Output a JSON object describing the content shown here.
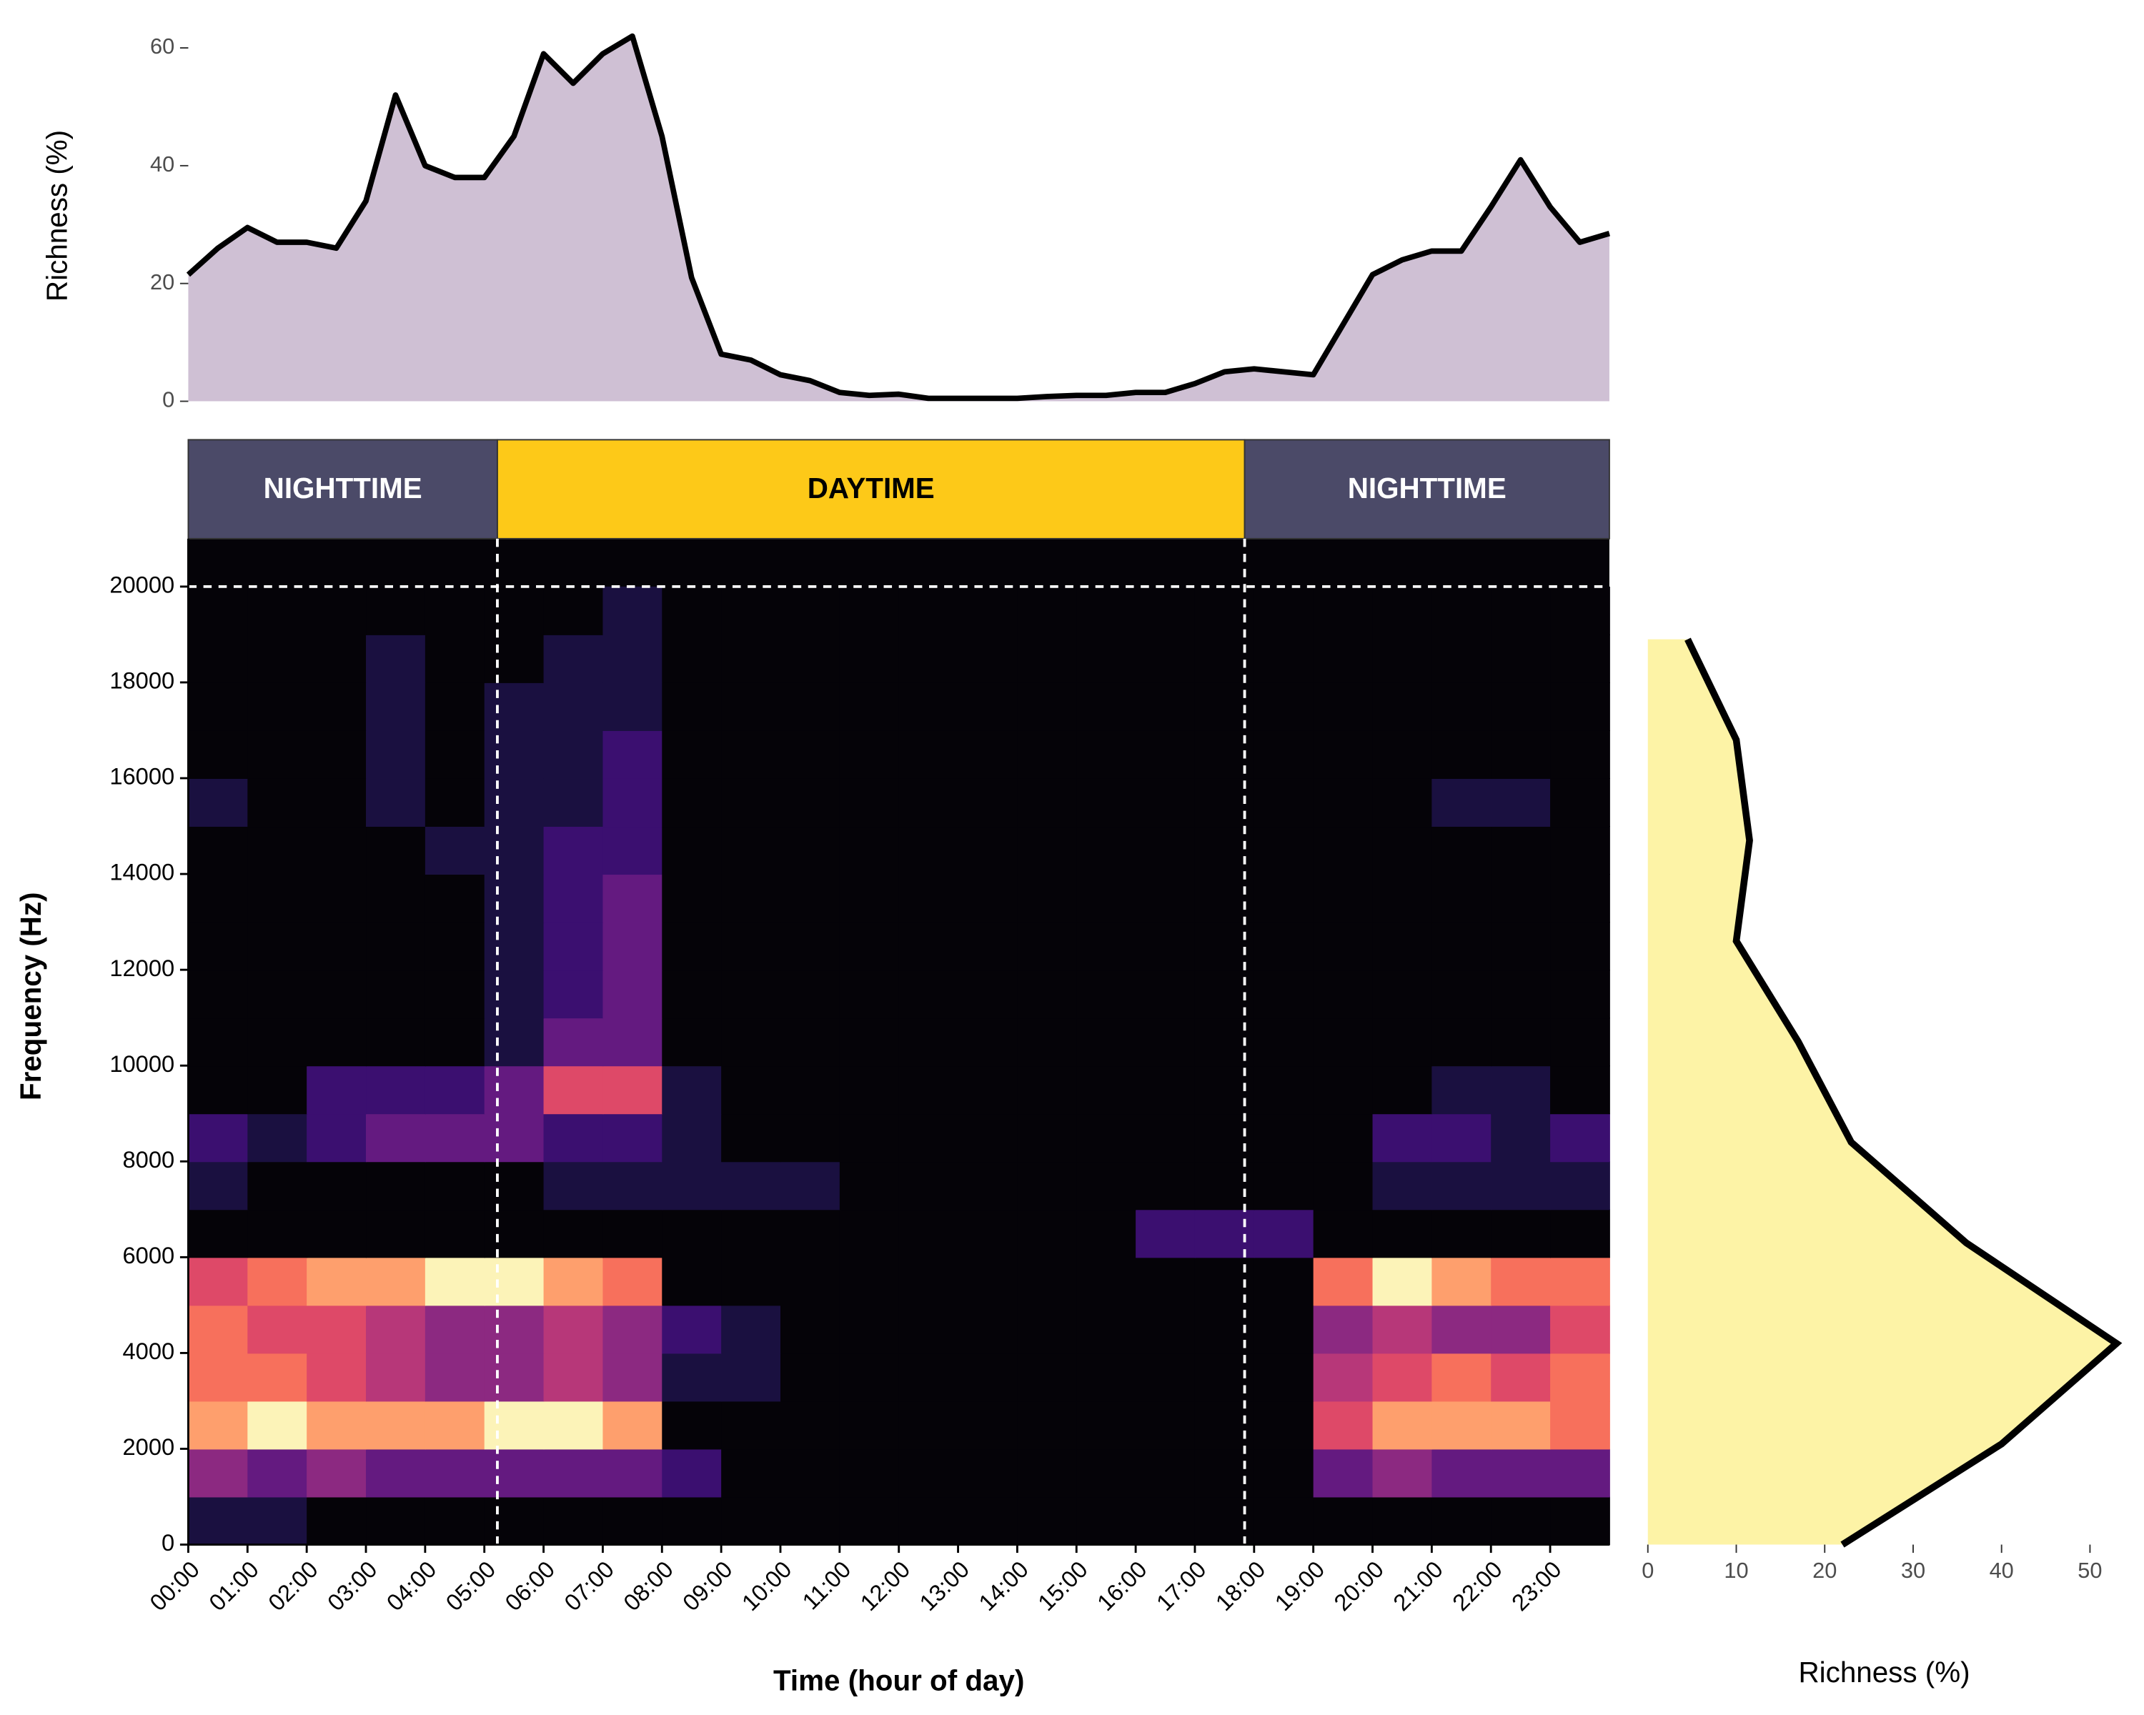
{
  "chart_data": [
    {
      "type": "area",
      "ylabel": "Richness (%)",
      "x": [
        0,
        0.5,
        1,
        1.5,
        2,
        2.5,
        3,
        3.5,
        4,
        4.5,
        5,
        5.5,
        6,
        6.5,
        7,
        7.5,
        8,
        8.5,
        9,
        9.5,
        10,
        10.5,
        11,
        11.5,
        12,
        12.5,
        13,
        13.5,
        14,
        14.5,
        15,
        15.5,
        16,
        16.5,
        17,
        17.5,
        18,
        18.5,
        19,
        19.5,
        20,
        20.5,
        21,
        21.5,
        22,
        22.5,
        23,
        23.5,
        24
      ],
      "values": [
        21.5,
        26,
        29.5,
        27,
        27,
        26,
        34,
        52,
        40,
        38,
        38,
        45,
        59,
        54,
        59,
        62,
        45,
        21,
        8,
        7,
        4.5,
        3.5,
        1.5,
        1,
        1.2,
        0.5,
        0.5,
        0.5,
        0.5,
        0.8,
        1,
        1,
        1.5,
        1.5,
        3,
        5,
        5.5,
        5,
        4.5,
        13,
        21.5,
        24,
        25.5,
        25.5,
        33,
        41,
        33,
        27,
        28.5
      ],
      "color": "#000000",
      "fill": "#cfc0d4",
      "xlim": [
        0,
        24
      ],
      "ylim": [
        0,
        63
      ],
      "yticks": [
        0,
        20,
        40,
        60
      ]
    },
    {
      "type": "heatmap",
      "xlabel": "Time (hour of day)",
      "ylabel": "Frequency (Hz)",
      "x": [
        0,
        1,
        2,
        3,
        4,
        5,
        6,
        7,
        8,
        9,
        10,
        11,
        12,
        13,
        14,
        15,
        16,
        17,
        18,
        19,
        20,
        21,
        22,
        23
      ],
      "y": [
        0,
        1000,
        2000,
        3000,
        4000,
        5000,
        6000,
        7000,
        8000,
        9000,
        10000,
        11000,
        12000,
        13000,
        14000,
        15000,
        16000,
        17000,
        18000,
        19000
      ],
      "z": [
        [
          1,
          1,
          0,
          0,
          0,
          0,
          0,
          0,
          0,
          0,
          0,
          0,
          0,
          0,
          0,
          0,
          0,
          0,
          0,
          0,
          0,
          0,
          0,
          0
        ],
        [
          4,
          3,
          4,
          3,
          3,
          3,
          3,
          3,
          2,
          0,
          0,
          0,
          0,
          0,
          0,
          0,
          0,
          0,
          0,
          3,
          4,
          3,
          3,
          3
        ],
        [
          8,
          9,
          8,
          8,
          8,
          9,
          9,
          8,
          0,
          0,
          0,
          0,
          0,
          0,
          0,
          0,
          0,
          0,
          0,
          6,
          8,
          8,
          8,
          7
        ],
        [
          7,
          7,
          6,
          5,
          4,
          4,
          5,
          4,
          1,
          1,
          0,
          0,
          0,
          0,
          0,
          0,
          0,
          0,
          0,
          5,
          6,
          7,
          6,
          7
        ],
        [
          7,
          6,
          6,
          5,
          4,
          4,
          5,
          4,
          2,
          1,
          0,
          0,
          0,
          0,
          0,
          0,
          0,
          0,
          0,
          4,
          5,
          4,
          4,
          6
        ],
        [
          6,
          7,
          8,
          8,
          9,
          9,
          8,
          7,
          0,
          0,
          0,
          0,
          0,
          0,
          0,
          0,
          0,
          0,
          0,
          7,
          9,
          8,
          7,
          7
        ],
        [
          0,
          0,
          0,
          0,
          0,
          0,
          0,
          0,
          0,
          0,
          0,
          0,
          0,
          0,
          0,
          0,
          2,
          2,
          2,
          0,
          0,
          0,
          0,
          0
        ],
        [
          1,
          0,
          0,
          0,
          0,
          0,
          1,
          1,
          1,
          1,
          1,
          0,
          0,
          0,
          0,
          0,
          0,
          0,
          0,
          0,
          1,
          1,
          1,
          1
        ],
        [
          2,
          1,
          2,
          3,
          3,
          3,
          2,
          2,
          1,
          0,
          0,
          0,
          0,
          0,
          0,
          0,
          0,
          0,
          0,
          0,
          2,
          2,
          1,
          2
        ],
        [
          0,
          0,
          2,
          2,
          2,
          3,
          6,
          6,
          1,
          0,
          0,
          0,
          0,
          0,
          0,
          0,
          0,
          0,
          0,
          0,
          0,
          1,
          1,
          0
        ],
        [
          0,
          0,
          0,
          0,
          0,
          1,
          3,
          3,
          0,
          0,
          0,
          0,
          0,
          0,
          0,
          0,
          0,
          0,
          0,
          0,
          0,
          0,
          0,
          0
        ],
        [
          0,
          0,
          0,
          0,
          0,
          1,
          2,
          3,
          0,
          0,
          0,
          0,
          0,
          0,
          0,
          0,
          0,
          0,
          0,
          0,
          0,
          0,
          0,
          0
        ],
        [
          0,
          0,
          0,
          0,
          0,
          1,
          2,
          3,
          0,
          0,
          0,
          0,
          0,
          0,
          0,
          0,
          0,
          0,
          0,
          0,
          0,
          0,
          0,
          0
        ],
        [
          0,
          0,
          0,
          0,
          0,
          1,
          2,
          3,
          0,
          0,
          0,
          0,
          0,
          0,
          0,
          0,
          0,
          0,
          0,
          0,
          0,
          0,
          0,
          0
        ],
        [
          0,
          0,
          0,
          0,
          1,
          1,
          2,
          2,
          0,
          0,
          0,
          0,
          0,
          0,
          0,
          0,
          0,
          0,
          0,
          0,
          0,
          0,
          0,
          0
        ],
        [
          1,
          0,
          0,
          1,
          0,
          1,
          1,
          2,
          0,
          0,
          0,
          0,
          0,
          0,
          0,
          0,
          0,
          0,
          0,
          0,
          0,
          1,
          1,
          0
        ],
        [
          0,
          0,
          0,
          1,
          0,
          1,
          1,
          2,
          0,
          0,
          0,
          0,
          0,
          0,
          0,
          0,
          0,
          0,
          0,
          0,
          0,
          0,
          0,
          0
        ],
        [
          0,
          0,
          0,
          1,
          0,
          1,
          1,
          1,
          0,
          0,
          0,
          0,
          0,
          0,
          0,
          0,
          0,
          0,
          0,
          0,
          0,
          0,
          0,
          0
        ],
        [
          0,
          0,
          0,
          1,
          0,
          0,
          1,
          1,
          0,
          0,
          0,
          0,
          0,
          0,
          0,
          0,
          0,
          0,
          0,
          0,
          0,
          0,
          0,
          0
        ],
        [
          0,
          0,
          0,
          0,
          0,
          0,
          0,
          1,
          0,
          0,
          0,
          0,
          0,
          0,
          0,
          0,
          0,
          0,
          0,
          0,
          0,
          0,
          0,
          0
        ]
      ],
      "colors": [
        "#050308",
        "#1a1040",
        "#3b0f70",
        "#641a80",
        "#8c2981",
        "#b73779",
        "#de4968",
        "#f7705c",
        "#fe9f6d",
        "#fcf3b8"
      ],
      "xlim": [
        0,
        24
      ],
      "ylim": [
        0,
        21000
      ],
      "xticks": [
        {
          "value": 0,
          "label": "00:00"
        },
        {
          "value": 1,
          "label": "01:00"
        },
        {
          "value": 2,
          "label": "02:00"
        },
        {
          "value": 3,
          "label": "03:00"
        },
        {
          "value": 4,
          "label": "04:00"
        },
        {
          "value": 5,
          "label": "05:00"
        },
        {
          "value": 6,
          "label": "06:00"
        },
        {
          "value": 7,
          "label": "07:00"
        },
        {
          "value": 8,
          "label": "08:00"
        },
        {
          "value": 9,
          "label": "09:00"
        },
        {
          "value": 10,
          "label": "10:00"
        },
        {
          "value": 11,
          "label": "11:00"
        },
        {
          "value": 12,
          "label": "12:00"
        },
        {
          "value": 13,
          "label": "13:00"
        },
        {
          "value": 14,
          "label": "14:00"
        },
        {
          "value": 15,
          "label": "15:00"
        },
        {
          "value": 16,
          "label": "16:00"
        },
        {
          "value": 17,
          "label": "17:00"
        },
        {
          "value": 18,
          "label": "18:00"
        },
        {
          "value": 19,
          "label": "19:00"
        },
        {
          "value": 20,
          "label": "20:00"
        },
        {
          "value": 21,
          "label": "21:00"
        },
        {
          "value": 22,
          "label": "22:00"
        },
        {
          "value": 23,
          "label": "23:00"
        }
      ],
      "yticks": [
        0,
        2000,
        4000,
        6000,
        8000,
        10000,
        12000,
        14000,
        16000,
        18000,
        20000
      ],
      "hline": 20000,
      "periods": [
        {
          "label": "NIGHTTIME",
          "start": 0,
          "end": 5.22,
          "color": "#4b4a68",
          "text_color": "#ffffff"
        },
        {
          "label": "DAYTIME",
          "start": 5.22,
          "end": 17.84,
          "color": "#fdc918",
          "text_color": "#000000"
        },
        {
          "label": "NIGHTTIME",
          "start": 17.84,
          "end": 24,
          "color": "#4b4a68",
          "text_color": "#ffffff"
        }
      ]
    },
    {
      "type": "profile",
      "xlabel": "Richness (%)",
      "freq": [
        0,
        2100,
        4200,
        6300,
        8400,
        10500,
        12600,
        14700,
        16800,
        18900
      ],
      "values": [
        22,
        40,
        53,
        36,
        23,
        17,
        10,
        11.5,
        10,
        4.5
      ],
      "color": "#000000",
      "fill": "#fdf3a6",
      "xlim": [
        0,
        53
      ],
      "xticks": [
        0,
        10,
        20,
        30,
        40,
        50
      ],
      "ylim": [
        0,
        21000
      ]
    }
  ]
}
